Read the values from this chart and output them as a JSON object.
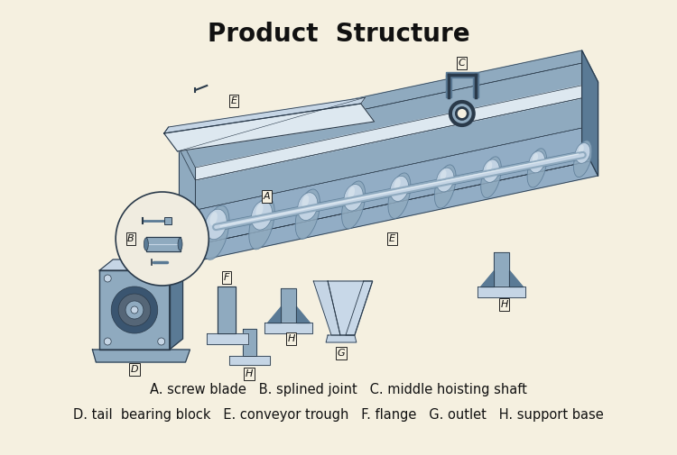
{
  "title": "Product  Structure",
  "title_fontsize": 20,
  "title_fontweight": "bold",
  "background_color": "#f5f0e0",
  "legend_line1": "A. screw blade   B. splined joint   C. middle hoisting shaft",
  "legend_line2": "D. tail  bearing block   E. conveyor trough   F. flange   G. outlet   H. support base",
  "legend_fontsize": 10.5,
  "fig_width": 7.5,
  "fig_height": 5.05,
  "dpi": 100,
  "steel_light": "#c5d5e5",
  "steel_mid": "#8faabf",
  "steel_dark": "#5a7a95",
  "steel_shadow": "#3a5570",
  "steel_bright": "#dde8f0",
  "trough_light": "#c8d8e8",
  "trough_mid": "#92adc5",
  "outline": "#2a3a4a"
}
